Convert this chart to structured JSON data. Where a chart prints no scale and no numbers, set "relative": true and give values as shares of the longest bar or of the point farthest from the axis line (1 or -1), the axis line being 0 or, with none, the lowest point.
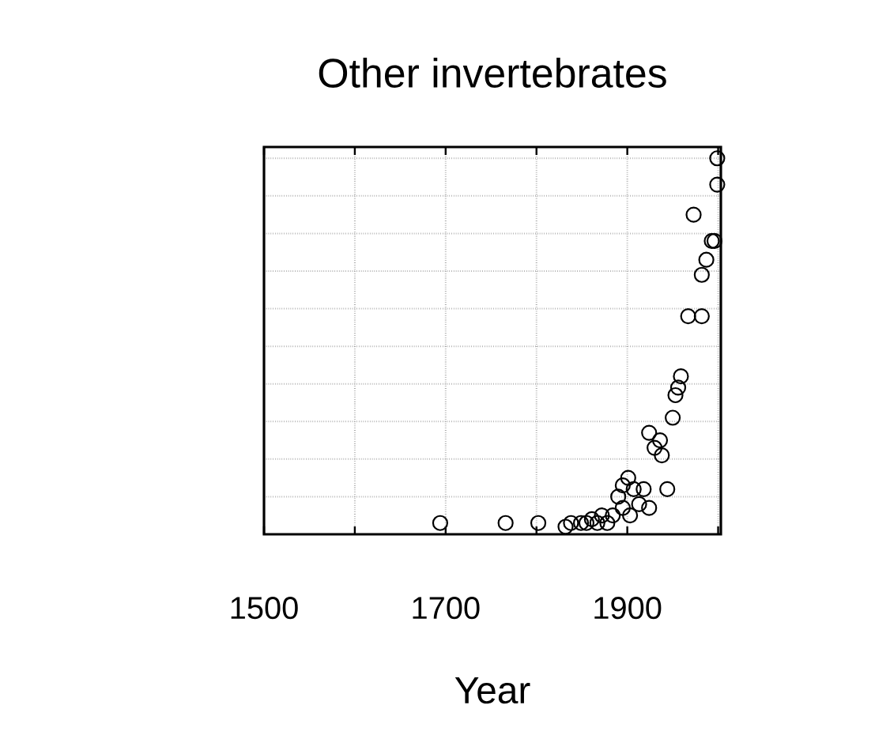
{
  "chart_data": {
    "type": "scatter",
    "title": "Other invertebrates",
    "xlabel": "Year",
    "relative": true,
    "marker": "circle",
    "grid": true,
    "color": "#000000",
    "xlim": [
      1500,
      2003
    ],
    "xticks": [
      {
        "value": 1500,
        "label": "1500"
      },
      {
        "value": 1600,
        "label": null
      },
      {
        "value": 1700,
        "label": "1700"
      },
      {
        "value": 1800,
        "label": null
      },
      {
        "value": 1900,
        "label": "1900"
      },
      {
        "value": 2000,
        "label": null
      }
    ],
    "x": [
      1694,
      1766,
      1802,
      1832,
      1838,
      1849,
      1855,
      1861,
      1867,
      1872,
      1878,
      1884,
      1890,
      1895,
      1895,
      1901,
      1903,
      1907,
      1913,
      1918,
      1924,
      1924,
      1930,
      1936,
      1938,
      1944,
      1950,
      1953,
      1956,
      1959,
      1967,
      1973,
      1982,
      1982,
      1987,
      1993,
      1996,
      1999,
      1999
    ],
    "values": [
      0.03,
      0.03,
      0.03,
      0.02,
      0.03,
      0.03,
      0.03,
      0.04,
      0.03,
      0.05,
      0.03,
      0.05,
      0.1,
      0.07,
      0.13,
      0.15,
      0.05,
      0.12,
      0.08,
      0.12,
      0.07,
      0.27,
      0.23,
      0.25,
      0.21,
      0.12,
      0.31,
      0.37,
      0.39,
      0.42,
      0.58,
      0.85,
      0.58,
      0.69,
      0.73,
      0.78,
      0.78,
      0.93,
      1
    ]
  }
}
